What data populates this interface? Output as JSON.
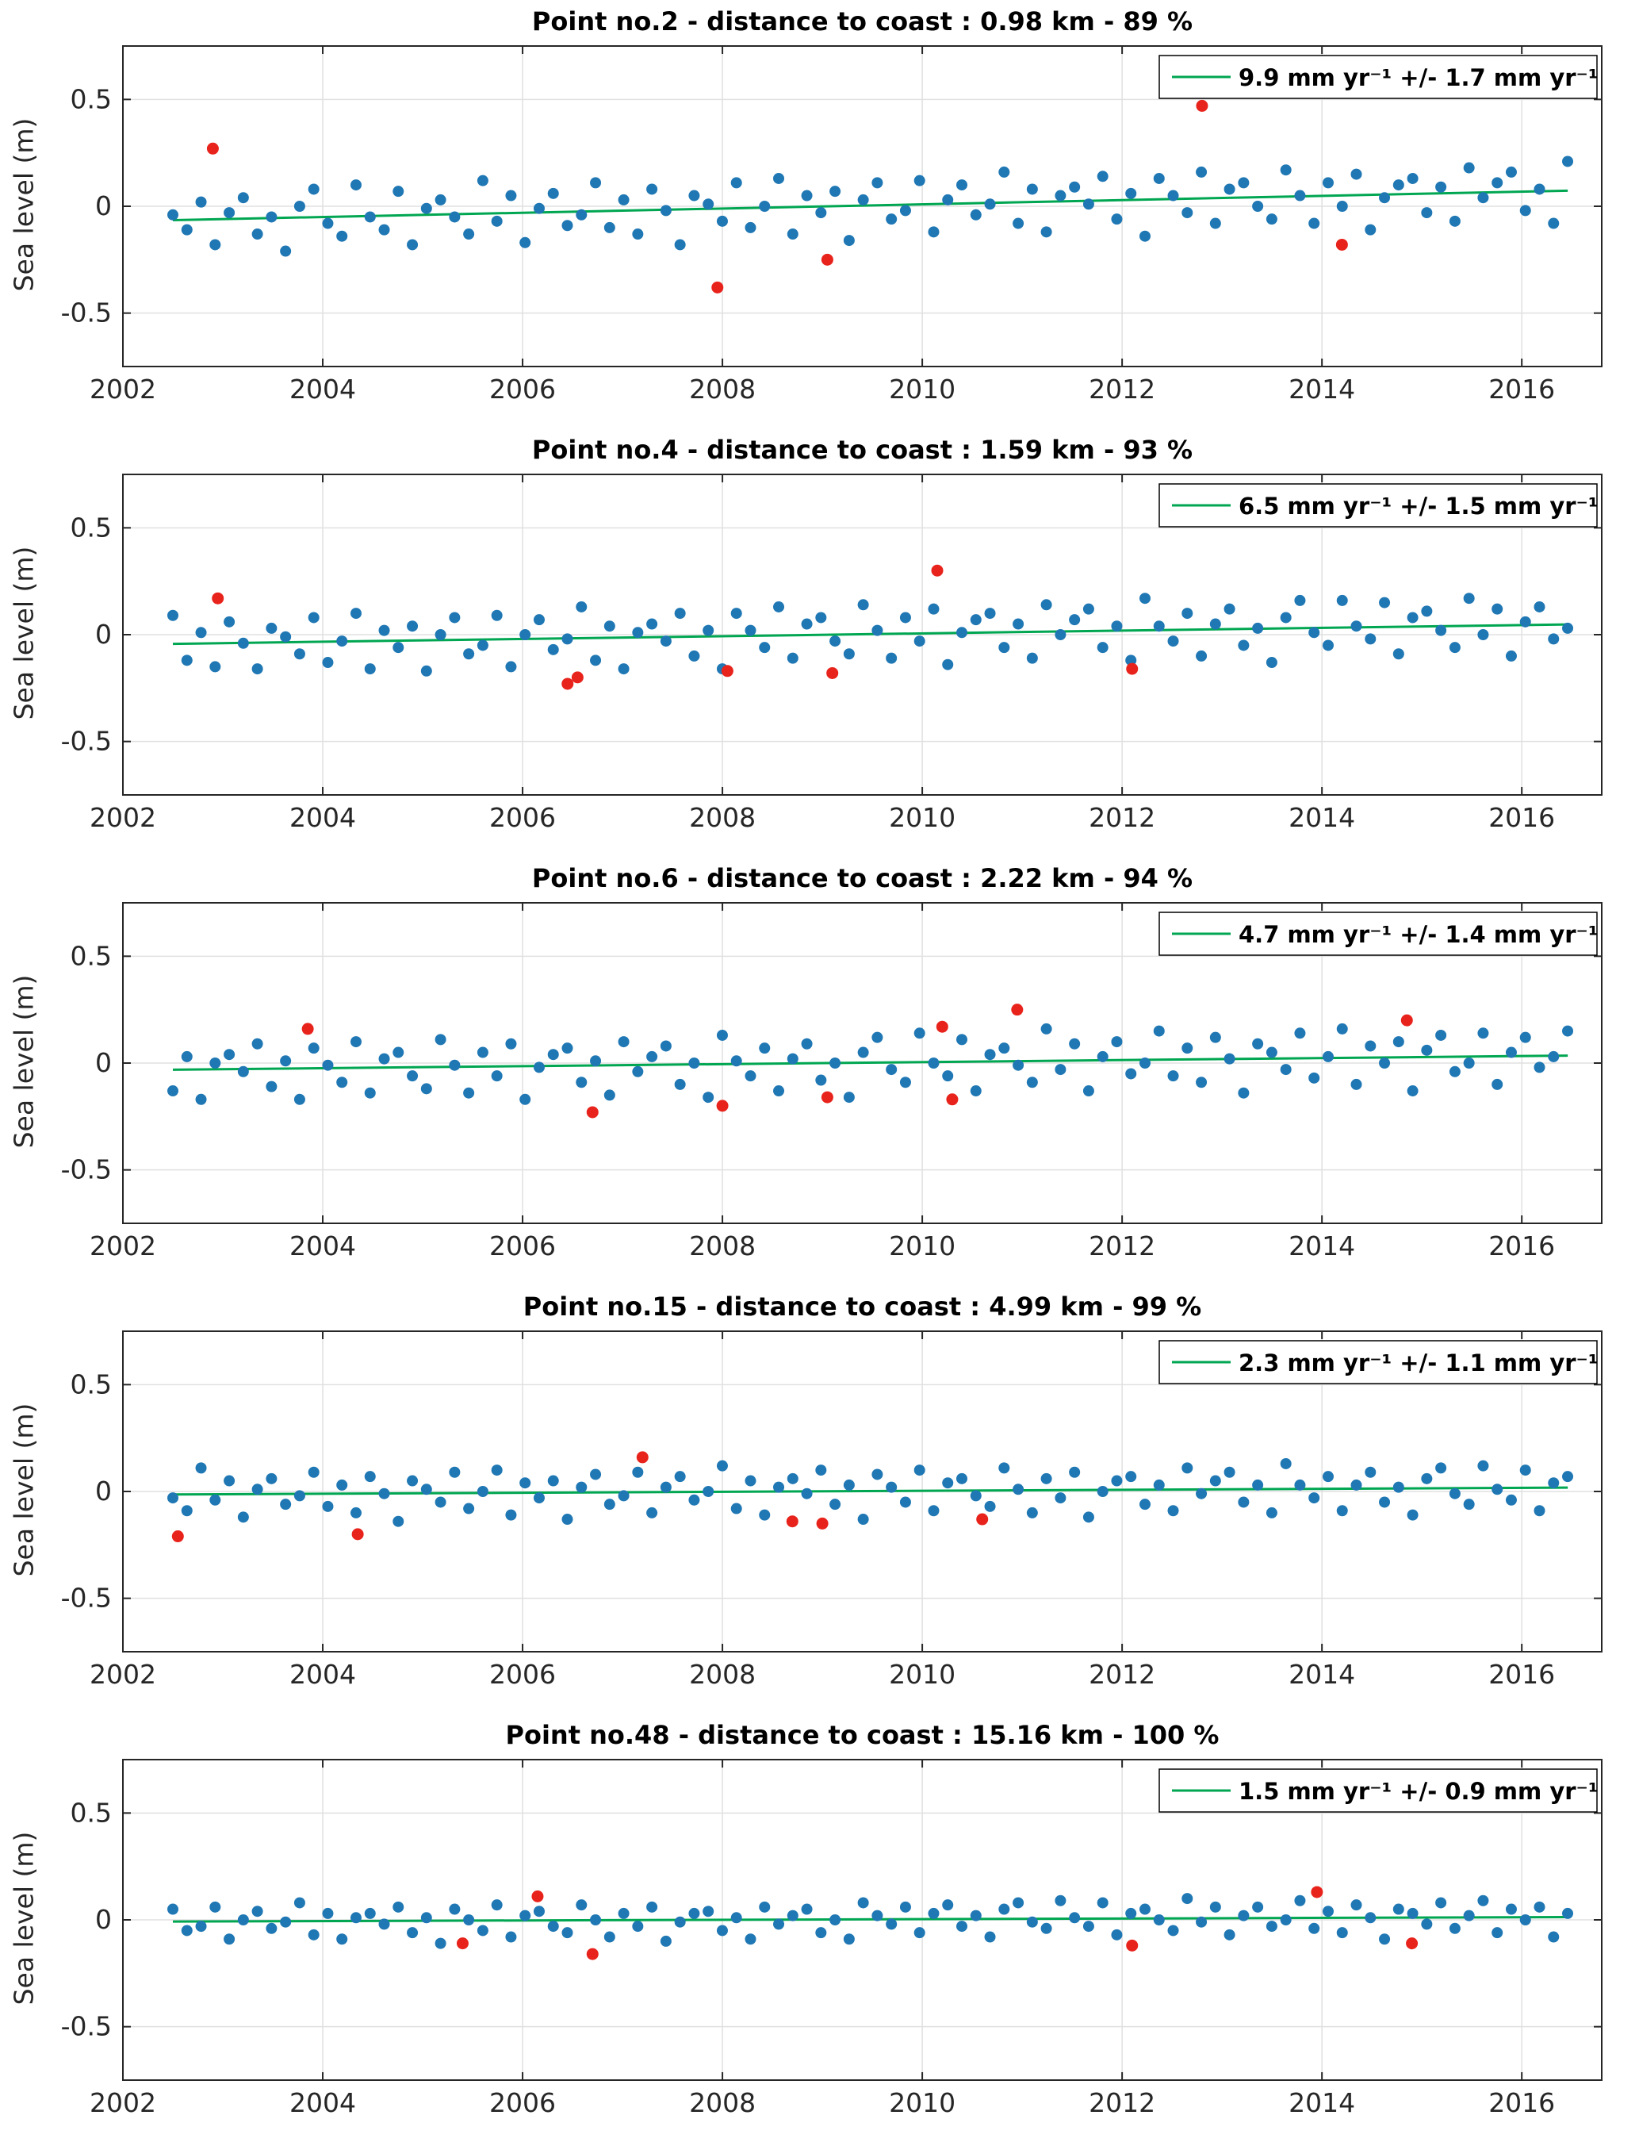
{
  "colors": {
    "blue": "#1f77b4",
    "red": "#e8231c",
    "green": "#00a651",
    "grid": "#e0e0e0",
    "frame": "#262626",
    "tick_label": "#262626",
    "legend_border": "#000000",
    "background": "#ffffff"
  },
  "axes": {
    "x_range": [
      2002,
      2016.8
    ],
    "x_ticks": [
      2002,
      2004,
      2006,
      2008,
      2010,
      2012,
      2014,
      2016
    ],
    "y_range": [
      -0.75,
      0.75
    ],
    "y_ticks": [
      -0.5,
      0,
      0.5
    ],
    "y_tick_labels": [
      "-0.5",
      "0",
      "0.5"
    ],
    "ylabel": "Sea level (m)"
  },
  "chart_data": [
    {
      "type": "scatter",
      "title": "Point no.2 - distance to coast : 0.98 km - 89 %",
      "ylabel": "Sea level (m)",
      "legend": "9.9 mm yr⁻¹ +/- 1.7 mm yr⁻¹",
      "trend": {
        "slope_mm_yr": 9.9,
        "error_mm_yr": 1.7,
        "x0": 2002.5,
        "y0": -0.065,
        "x1": 2016.46,
        "y1": 0.073
      },
      "x_start": 2002.5,
      "x_step": 0.141,
      "y": [
        -0.04,
        -0.11,
        0.02,
        -0.18,
        -0.03,
        0.04,
        -0.13,
        -0.05,
        -0.21,
        0.0,
        0.08,
        -0.08,
        -0.14,
        0.1,
        -0.05,
        -0.11,
        0.07,
        -0.18,
        -0.01,
        0.03,
        -0.05,
        -0.13,
        0.12,
        -0.07,
        0.05,
        -0.17,
        -0.01,
        0.06,
        -0.09,
        -0.04,
        0.11,
        -0.1,
        0.03,
        -0.13,
        0.08,
        -0.02,
        -0.18,
        0.05,
        0.01,
        -0.07,
        0.11,
        -0.1,
        0.0,
        0.13,
        -0.13,
        0.05,
        -0.03,
        0.07,
        -0.16,
        0.03,
        0.11,
        -0.06,
        -0.02,
        0.12,
        -0.12,
        0.03,
        0.1,
        -0.04,
        0.01,
        0.16,
        -0.08,
        0.08,
        -0.12,
        0.05,
        0.09,
        0.01,
        0.14,
        -0.06,
        0.06,
        -0.14,
        0.13,
        0.05,
        -0.03,
        0.16,
        -0.08,
        0.08,
        0.11,
        0.0,
        -0.06,
        0.17,
        0.05,
        -0.08,
        0.11,
        0.0,
        0.15,
        -0.11,
        0.04,
        0.1,
        0.13,
        -0.03,
        0.09,
        -0.07,
        0.18,
        0.04,
        0.11,
        0.16,
        -0.02,
        0.08,
        -0.08,
        0.21
      ],
      "outliers": [
        [
          2002.9,
          0.27
        ],
        [
          2007.95,
          -0.38
        ],
        [
          2009.05,
          -0.25
        ],
        [
          2012.8,
          0.47
        ],
        [
          2014.2,
          -0.18
        ]
      ]
    },
    {
      "type": "scatter",
      "title": "Point no.4 - distance to coast : 1.59 km - 93 %",
      "ylabel": "Sea level (m)",
      "legend": "6.5 mm yr⁻¹ +/- 1.5 mm yr⁻¹",
      "trend": {
        "slope_mm_yr": 6.5,
        "error_mm_yr": 1.5,
        "x0": 2002.5,
        "y0": -0.043,
        "x1": 2016.46,
        "y1": 0.048
      },
      "x_start": 2002.5,
      "x_step": 0.141,
      "y": [
        0.09,
        -0.12,
        0.01,
        -0.15,
        0.06,
        -0.04,
        -0.16,
        0.03,
        -0.01,
        -0.09,
        0.08,
        -0.13,
        -0.03,
        0.1,
        -0.16,
        0.02,
        -0.06,
        0.04,
        -0.17,
        0.0,
        0.08,
        -0.09,
        -0.05,
        0.09,
        -0.15,
        0.0,
        0.07,
        -0.07,
        -0.02,
        0.13,
        -0.12,
        0.04,
        -0.16,
        0.01,
        0.05,
        -0.03,
        0.1,
        -0.1,
        0.02,
        -0.16,
        0.1,
        0.02,
        -0.06,
        0.13,
        -0.11,
        0.05,
        0.08,
        -0.03,
        -0.09,
        0.14,
        0.02,
        -0.11,
        0.08,
        -0.03,
        0.12,
        -0.14,
        0.01,
        0.07,
        0.1,
        -0.06,
        0.05,
        -0.11,
        0.14,
        0.0,
        0.07,
        0.12,
        -0.06,
        0.04,
        -0.12,
        0.17,
        0.04,
        -0.03,
        0.1,
        -0.1,
        0.05,
        0.12,
        -0.05,
        0.03,
        -0.13,
        0.08,
        0.16,
        0.01,
        -0.05,
        0.16,
        0.04,
        -0.02,
        0.15,
        -0.09,
        0.08,
        0.11,
        0.02,
        -0.06,
        0.17,
        0.0,
        0.12,
        -0.1,
        0.06,
        0.13,
        -0.02,
        0.03
      ],
      "outliers": [
        [
          2002.95,
          0.17
        ],
        [
          2006.45,
          -0.23
        ],
        [
          2006.55,
          -0.2
        ],
        [
          2008.05,
          -0.17
        ],
        [
          2009.1,
          -0.18
        ],
        [
          2010.15,
          0.3
        ],
        [
          2012.1,
          -0.16
        ]
      ]
    },
    {
      "type": "scatter",
      "title": "Point no.6 - distance to coast : 2.22 km - 94 %",
      "ylabel": "Sea level (m)",
      "legend": "4.7 mm yr⁻¹ +/- 1.4 mm yr⁻¹",
      "trend": {
        "slope_mm_yr": 4.7,
        "error_mm_yr": 1.4,
        "x0": 2002.5,
        "y0": -0.031,
        "x1": 2016.46,
        "y1": 0.035
      },
      "x_start": 2002.5,
      "x_step": 0.141,
      "y": [
        -0.13,
        0.03,
        -0.17,
        0.0,
        0.04,
        -0.04,
        0.09,
        -0.11,
        0.01,
        -0.17,
        0.07,
        -0.01,
        -0.09,
        0.1,
        -0.14,
        0.02,
        0.05,
        -0.06,
        -0.12,
        0.11,
        -0.01,
        -0.14,
        0.05,
        -0.06,
        0.09,
        -0.17,
        -0.02,
        0.04,
        0.07,
        -0.09,
        0.01,
        -0.15,
        0.1,
        -0.04,
        0.03,
        0.08,
        -0.1,
        0.0,
        -0.16,
        0.13,
        0.01,
        -0.06,
        0.07,
        -0.13,
        0.02,
        0.09,
        -0.08,
        0.0,
        -0.16,
        0.05,
        0.12,
        -0.03,
        -0.09,
        0.14,
        0.0,
        -0.06,
        0.11,
        -0.13,
        0.04,
        0.07,
        -0.01,
        -0.09,
        0.16,
        -0.03,
        0.09,
        -0.13,
        0.03,
        0.1,
        -0.05,
        0.0,
        0.15,
        -0.06,
        0.07,
        -0.09,
        0.12,
        0.02,
        -0.14,
        0.09,
        0.05,
        -0.03,
        0.14,
        -0.07,
        0.03,
        0.16,
        -0.1,
        0.08,
        0.0,
        0.1,
        -0.13,
        0.06,
        0.13,
        -0.04,
        0.0,
        0.14,
        -0.1,
        0.05,
        0.12,
        -0.02,
        0.03,
        0.15
      ],
      "outliers": [
        [
          2003.85,
          0.16
        ],
        [
          2006.7,
          -0.23
        ],
        [
          2008.0,
          -0.2
        ],
        [
          2009.05,
          -0.16
        ],
        [
          2010.2,
          0.17
        ],
        [
          2010.3,
          -0.17
        ],
        [
          2010.95,
          0.25
        ],
        [
          2014.85,
          0.2
        ]
      ]
    },
    {
      "type": "scatter",
      "title": "Point no.15 - distance to coast : 4.99 km - 99 %",
      "ylabel": "Sea level (m)",
      "legend": "2.3 mm yr⁻¹ +/- 1.1 mm yr⁻¹",
      "trend": {
        "slope_mm_yr": 2.3,
        "error_mm_yr": 1.1,
        "x0": 2002.5,
        "y0": -0.014,
        "x1": 2016.46,
        "y1": 0.018
      },
      "x_start": 2002.5,
      "x_step": 0.141,
      "y": [
        -0.03,
        -0.09,
        0.11,
        -0.04,
        0.05,
        -0.12,
        0.01,
        0.06,
        -0.06,
        -0.02,
        0.09,
        -0.07,
        0.03,
        -0.1,
        0.07,
        -0.01,
        -0.14,
        0.05,
        0.01,
        -0.05,
        0.09,
        -0.08,
        0.0,
        0.1,
        -0.11,
        0.04,
        -0.03,
        0.05,
        -0.13,
        0.02,
        0.08,
        -0.06,
        -0.02,
        0.09,
        -0.1,
        0.02,
        0.07,
        -0.04,
        0.0,
        0.12,
        -0.08,
        0.05,
        -0.11,
        0.02,
        0.06,
        -0.01,
        0.1,
        -0.06,
        0.03,
        -0.13,
        0.08,
        0.02,
        -0.05,
        0.1,
        -0.09,
        0.04,
        0.06,
        -0.02,
        -0.07,
        0.11,
        0.01,
        -0.1,
        0.06,
        -0.03,
        0.09,
        -0.12,
        0.0,
        0.05,
        0.07,
        -0.06,
        0.03,
        -0.09,
        0.11,
        -0.01,
        0.05,
        0.09,
        -0.05,
        0.03,
        -0.1,
        0.13,
        0.03,
        -0.03,
        0.07,
        -0.09,
        0.03,
        0.09,
        -0.05,
        0.02,
        -0.11,
        0.06,
        0.11,
        -0.01,
        -0.06,
        0.12,
        0.01,
        -0.04,
        0.1,
        -0.09,
        0.04,
        0.07
      ],
      "outliers": [
        [
          2002.55,
          -0.21
        ],
        [
          2004.35,
          -0.2
        ],
        [
          2007.2,
          0.16
        ],
        [
          2008.7,
          -0.14
        ],
        [
          2009.0,
          -0.15
        ],
        [
          2010.6,
          -0.13
        ]
      ]
    },
    {
      "type": "scatter",
      "title": "Point no.48 - distance to coast : 15.16 km - 100 %",
      "ylabel": "Sea level (m)",
      "legend": "1.5 mm yr⁻¹ +/- 0.9 mm yr⁻¹",
      "trend": {
        "slope_mm_yr": 1.5,
        "error_mm_yr": 0.9,
        "x0": 2002.5,
        "y0": -0.008,
        "x1": 2016.46,
        "y1": 0.013
      },
      "x_start": 2002.5,
      "x_step": 0.141,
      "y": [
        0.05,
        -0.05,
        -0.03,
        0.06,
        -0.09,
        0.0,
        0.04,
        -0.04,
        -0.01,
        0.08,
        -0.07,
        0.03,
        -0.09,
        0.01,
        0.03,
        -0.02,
        0.06,
        -0.06,
        0.01,
        -0.11,
        0.05,
        0.0,
        -0.05,
        0.07,
        -0.08,
        0.02,
        0.04,
        -0.03,
        -0.06,
        0.07,
        0.0,
        -0.08,
        0.03,
        -0.03,
        0.06,
        -0.1,
        -0.01,
        0.03,
        0.04,
        -0.05,
        0.01,
        -0.09,
        0.06,
        -0.02,
        0.02,
        0.05,
        -0.06,
        0.0,
        -0.09,
        0.08,
        0.02,
        -0.02,
        0.06,
        -0.06,
        0.03,
        0.07,
        -0.03,
        0.02,
        -0.08,
        0.05,
        0.08,
        -0.01,
        -0.04,
        0.09,
        0.01,
        -0.03,
        0.08,
        -0.07,
        0.03,
        0.05,
        0.0,
        -0.05,
        0.1,
        -0.01,
        0.06,
        -0.07,
        0.02,
        0.06,
        -0.03,
        0.0,
        0.09,
        -0.04,
        0.04,
        -0.06,
        0.07,
        0.01,
        -0.09,
        0.05,
        0.03,
        -0.02,
        0.08,
        -0.04,
        0.02,
        0.09,
        -0.06,
        0.05,
        0.0,
        0.06,
        -0.08,
        0.03
      ],
      "outliers": [
        [
          2005.4,
          -0.11
        ],
        [
          2006.15,
          0.11
        ],
        [
          2006.7,
          -0.16
        ],
        [
          2012.1,
          -0.12
        ],
        [
          2013.95,
          0.13
        ],
        [
          2014.9,
          -0.11
        ]
      ]
    }
  ]
}
